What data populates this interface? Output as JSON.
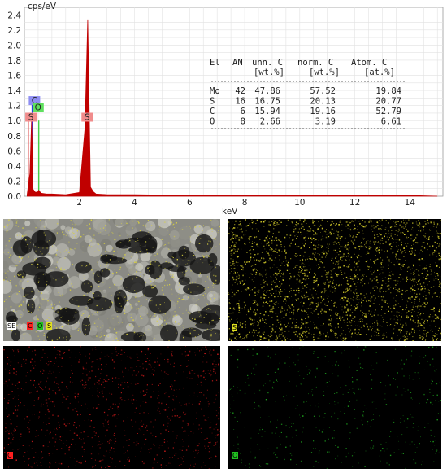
{
  "chart_data": {
    "type": "line",
    "ylabel": "cps/eV",
    "xlabel": "keV",
    "xlim": [
      0,
      15.2
    ],
    "ylim": [
      0,
      2.5
    ],
    "x_ticks": [
      2,
      4,
      6,
      8,
      10,
      12,
      14
    ],
    "y_ticks": [
      0.0,
      0.2,
      0.4,
      0.6,
      0.8,
      1.0,
      1.2,
      1.4,
      1.6,
      1.8,
      2.0,
      2.2,
      2.4
    ],
    "grid": true,
    "series": [
      {
        "color": "#c00000",
        "x": [
          0.1,
          0.2,
          0.26,
          0.28,
          0.3,
          0.4,
          0.5,
          0.52,
          0.6,
          0.8,
          1.0,
          1.5,
          2.0,
          2.2,
          2.3,
          2.4,
          2.5,
          2.6,
          3.0,
          4.0,
          6.0,
          8.0,
          10.0,
          12.0,
          14.0,
          15.0
        ],
        "y": [
          0.02,
          0.3,
          1.0,
          0.75,
          0.1,
          0.05,
          0.06,
          0.08,
          0.04,
          0.03,
          0.03,
          0.02,
          0.05,
          0.9,
          2.34,
          0.12,
          0.06,
          0.03,
          0.02,
          0.02,
          0.01,
          0.01,
          0.01,
          0.01,
          0.01,
          0.0
        ]
      }
    ],
    "peak_markers": [
      {
        "label": "C",
        "x": 0.277,
        "color": "#0000ff",
        "box_color": "#8e8ef2"
      },
      {
        "label": "S",
        "x": 0.15,
        "color": "#e06060",
        "box_color": "#f08c8c"
      },
      {
        "label": "O",
        "x": 0.525,
        "color": "#00c000",
        "box_color": "#5ee05e"
      },
      {
        "label": "S",
        "x": 2.31,
        "color": "#e06060",
        "box_color": "#f08c8c"
      }
    ]
  },
  "table": {
    "headers1": [
      "El",
      "AN",
      "unn. C",
      "norm. C",
      "Atom. C"
    ],
    "headers2": [
      "[wt.%]",
      "[wt.%]",
      "[at.%]"
    ],
    "rows": [
      [
        "Mo",
        "42",
        "47.86",
        "57.52",
        "19.84"
      ],
      [
        "S",
        "16",
        "16.75",
        "20.13",
        "20.77"
      ],
      [
        "C",
        "6",
        "15.94",
        "19.16",
        "52.79"
      ],
      [
        "O",
        "8",
        "2.66",
        "3.19",
        "6.61"
      ]
    ]
  },
  "maps": [
    {
      "id": "se",
      "labels": [
        {
          "text": "SE",
          "bg": "#ffffff"
        },
        {
          "text": "C",
          "bg": "#ff2020"
        },
        {
          "text": "O",
          "bg": "#20c020"
        },
        {
          "text": "S",
          "bg": "#e0e020"
        }
      ]
    },
    {
      "id": "s",
      "labels": [
        {
          "text": "S",
          "bg": "#e0e020"
        }
      ]
    },
    {
      "id": "c",
      "labels": [
        {
          "text": "C",
          "bg": "#ff2020"
        }
      ]
    },
    {
      "id": "o",
      "labels": [
        {
          "text": "O",
          "bg": "#20c020"
        }
      ]
    }
  ]
}
